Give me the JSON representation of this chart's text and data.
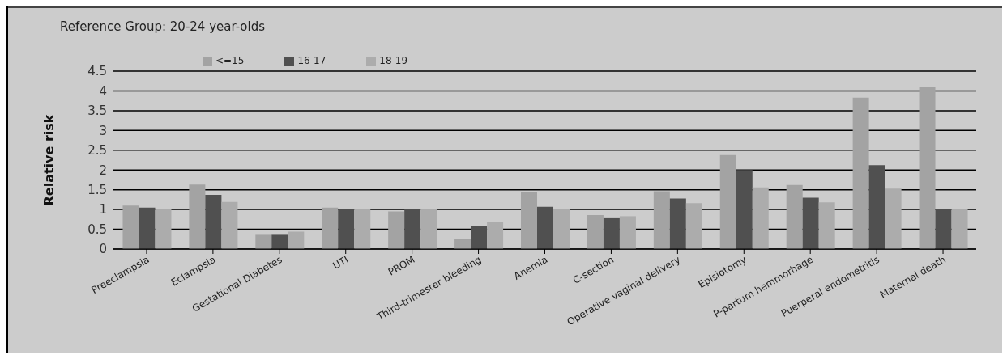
{
  "chart_data": {
    "type": "bar",
    "title": "Reference Group: 20-24 year-olds",
    "ylabel": "Relative risk",
    "categories": [
      "Preeclampsia",
      "Eclampsia",
      "Gestational Diabetes",
      "UTI",
      "PROM",
      "Third-trimester bleeding",
      "Anemia",
      "C-section",
      "Operative vaginal delivery",
      "Episiotomy",
      "P-partum hemmorhage",
      "Puerperal endometritis",
      "Maternal death"
    ],
    "series": [
      {
        "name": "<=15",
        "color": "#a3a3a3",
        "values": [
          1.1,
          1.63,
          0.36,
          1.05,
          0.95,
          0.26,
          1.43,
          0.86,
          1.46,
          2.38,
          1.62,
          3.83,
          4.11
        ]
      },
      {
        "name": "16-17",
        "color": "#505050",
        "values": [
          1.05,
          1.37,
          0.36,
          1.02,
          1.01,
          0.58,
          1.07,
          0.8,
          1.28,
          2.0,
          1.3,
          2.12,
          1.0
        ]
      },
      {
        "name": "18-19",
        "color": "#acacac",
        "values": [
          1.0,
          1.19,
          0.44,
          1.02,
          1.01,
          0.69,
          1.0,
          0.83,
          1.16,
          1.56,
          1.18,
          1.53,
          1.0
        ]
      }
    ],
    "ylim": [
      0,
      4.5
    ],
    "yticks": [
      0,
      0.5,
      1,
      1.5,
      2,
      2.5,
      3,
      3.5,
      4,
      4.5
    ],
    "grid": "y",
    "legend": "top left"
  }
}
